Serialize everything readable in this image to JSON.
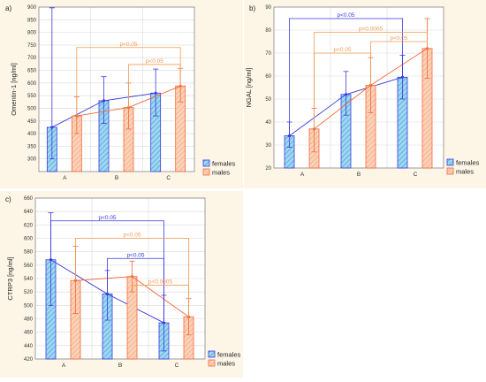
{
  "colors": {
    "background": "#fdf6e7",
    "plot_bg": "#ffffff",
    "grid": "#d9d9d9",
    "females": "#3a3ae0",
    "females_fill": "#9fd6f0",
    "males": "#f26a3a",
    "males_fill": "#fbd2b8",
    "bracket_blue": "#3a3ae0",
    "bracket_orange": "#f39a52"
  },
  "chart_data": [
    {
      "type": "bar",
      "panel_label": "a)",
      "ylabel": "Omentin-1 [ng/ml]",
      "ylim": [
        250,
        900
      ],
      "yticks": [
        "300",
        "350",
        "400",
        "450",
        "500",
        "550",
        "600",
        "650",
        "700",
        "750",
        "800",
        "850",
        "900"
      ],
      "tick_values": [
        300,
        350,
        400,
        450,
        500,
        550,
        600,
        650,
        700,
        750,
        800,
        850,
        900
      ],
      "categories": [
        "A",
        "B",
        "C"
      ],
      "series": [
        {
          "name": "females",
          "values": [
            425,
            530,
            560
          ],
          "err_low": [
            300,
            440,
            470
          ],
          "err_high": [
            897,
            625,
            655
          ]
        },
        {
          "name": "males",
          "values": [
            470,
            503,
            588
          ],
          "err_low": [
            400,
            418,
            525
          ],
          "err_high": [
            545,
            600,
            658
          ]
        }
      ],
      "brackets": [
        {
          "label": "p<0.05",
          "from": "1:0",
          "to": "1:2",
          "level": 740,
          "color": "orange"
        },
        {
          "label": "p<0.05",
          "from": "1:1",
          "to": "1:2",
          "level": 673,
          "color": "orange"
        }
      ],
      "legend": [
        "females",
        "males"
      ]
    },
    {
      "type": "bar",
      "panel_label": "b)",
      "ylabel": "NGAL [ng/ml]",
      "ylim": [
        20,
        90
      ],
      "yticks": [
        "20",
        "30",
        "40",
        "50",
        "60",
        "70",
        "80",
        "90"
      ],
      "tick_values": [
        20,
        30,
        40,
        50,
        60,
        70,
        80,
        90
      ],
      "categories": [
        "A",
        "B",
        "C"
      ],
      "series": [
        {
          "name": "females",
          "values": [
            34,
            52,
            59.5
          ],
          "err_low": [
            29,
            43,
            50
          ],
          "err_high": [
            40,
            62,
            69
          ]
        },
        {
          "name": "males",
          "values": [
            37,
            56,
            72
          ],
          "err_low": [
            27,
            44,
            59
          ],
          "err_high": [
            46,
            68,
            85
          ]
        }
      ],
      "brackets": [
        {
          "label": "p<0.05",
          "from": "0:0",
          "to": "0:2",
          "level": 85,
          "color": "blue"
        },
        {
          "label": "p<0.0005",
          "from": "1:0",
          "to": "1:2",
          "level": 79,
          "color": "orange"
        },
        {
          "label": "p<0.05",
          "from": "1:1",
          "to": "1:2",
          "level": 75,
          "color": "orange"
        },
        {
          "label": "p<0.05",
          "from": "1:0",
          "to": "1:1",
          "level": 70,
          "color": "orange"
        }
      ],
      "legend": [
        "females",
        "males"
      ]
    },
    {
      "type": "bar",
      "panel_label": "c)",
      "ylabel": "CTRP3 [ng/ml]",
      "ylim": [
        420,
        660
      ],
      "yticks": [
        "420",
        "440",
        "460",
        "480",
        "500",
        "520",
        "540",
        "560",
        "580",
        "600",
        "620",
        "640",
        "660"
      ],
      "tick_values": [
        420,
        440,
        460,
        480,
        500,
        520,
        540,
        560,
        580,
        600,
        620,
        640,
        660
      ],
      "categories": [
        "A",
        "B",
        "C"
      ],
      "series": [
        {
          "name": "females",
          "values": [
            568,
            517,
            474
          ],
          "err_low": [
            500,
            478,
            432
          ],
          "err_high": [
            638,
            552,
            515
          ]
        },
        {
          "name": "males",
          "values": [
            537,
            543,
            483
          ],
          "err_low": [
            488,
            520,
            456
          ],
          "err_high": [
            588,
            566,
            510
          ]
        }
      ],
      "brackets": [
        {
          "label": "p<0.05",
          "from": "0:0",
          "to": "0:2",
          "level": 626,
          "color": "blue"
        },
        {
          "label": "p<0.05",
          "from": "1:0",
          "to": "1:2",
          "level": 600,
          "color": "orange"
        },
        {
          "label": "p<0.05",
          "from": "0:1",
          "to": "0:2",
          "level": 570,
          "color": "blue"
        },
        {
          "label": "p<0.0005",
          "from": "1:1",
          "to": "1:2",
          "level": 530,
          "color": "orange"
        }
      ],
      "legend": [
        "females",
        "males"
      ]
    }
  ]
}
